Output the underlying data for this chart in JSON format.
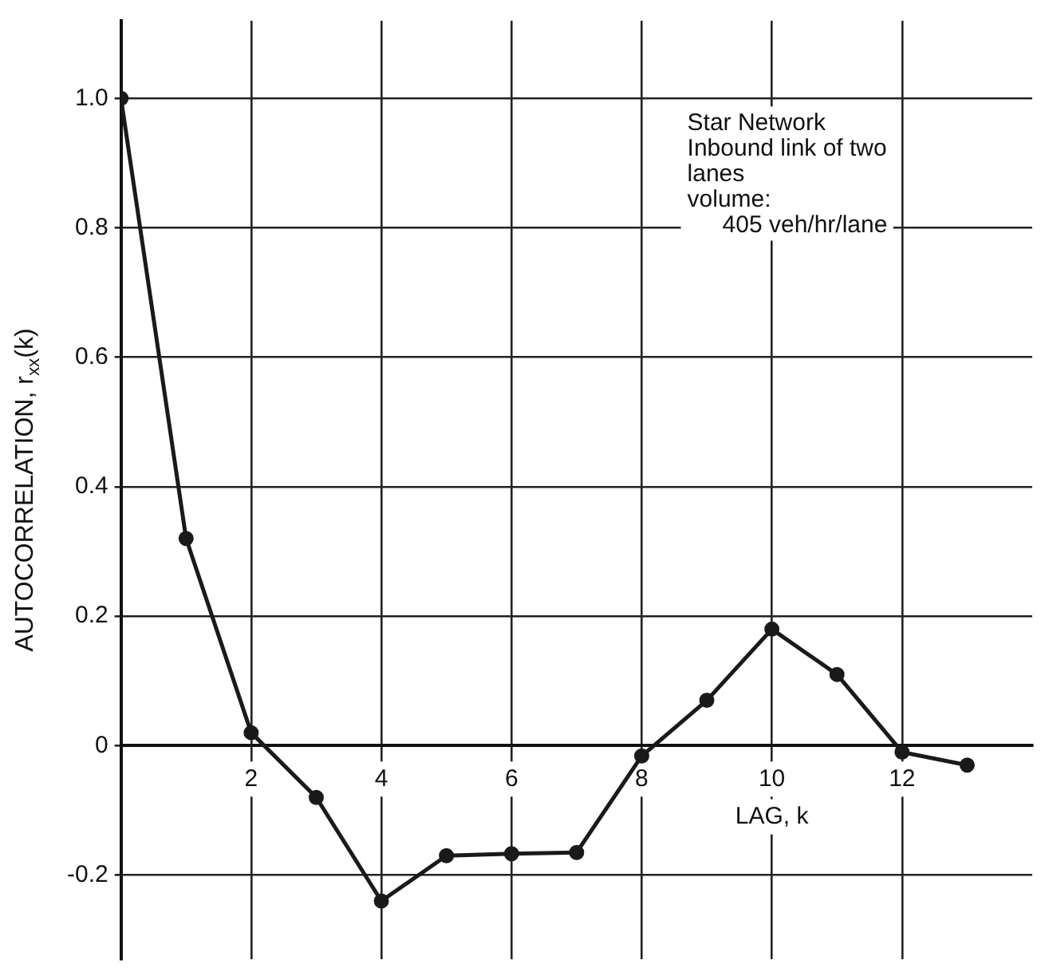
{
  "chart_data": {
    "type": "line",
    "xlabel": "LAG, k",
    "ylabel": "AUTOCORRELATION, r$_{xx}$(k)",
    "x": [
      0,
      1,
      2,
      3,
      4,
      5,
      6,
      7,
      8,
      9,
      10,
      11,
      12,
      13
    ],
    "series": [
      {
        "color": "#1a1a1a",
        "values": [
          1.0,
          0.32,
          0.02,
          -0.08,
          -0.24,
          -0.17,
          -0.167,
          -0.165,
          -0.016,
          0.07,
          0.18,
          0.11,
          -0.01,
          -0.03
        ]
      }
    ],
    "xlim": [
      0,
      14
    ],
    "xticks": [
      2,
      4,
      6,
      8,
      10,
      12
    ],
    "ylim": [
      -0.33,
      1.12
    ],
    "yticks": [
      {
        "value": -0.2,
        "label": "-0.2"
      },
      0,
      {
        "value": 0.2,
        "label": "0.2"
      },
      {
        "value": 0.4,
        "label": "0.4"
      },
      {
        "value": 0.6,
        "label": "0.6"
      },
      {
        "value": 0.8,
        "label": "0.8"
      },
      {
        "value": 1,
        "label": "1.0"
      }
    ],
    "grid": true,
    "marker": "circle",
    "line_style": "solid",
    "legend": false,
    "annotations": [
      "Star Network",
      "Inbound link of two",
      "lanes",
      "volume:",
      "405 veh/hr/lane"
    ]
  }
}
